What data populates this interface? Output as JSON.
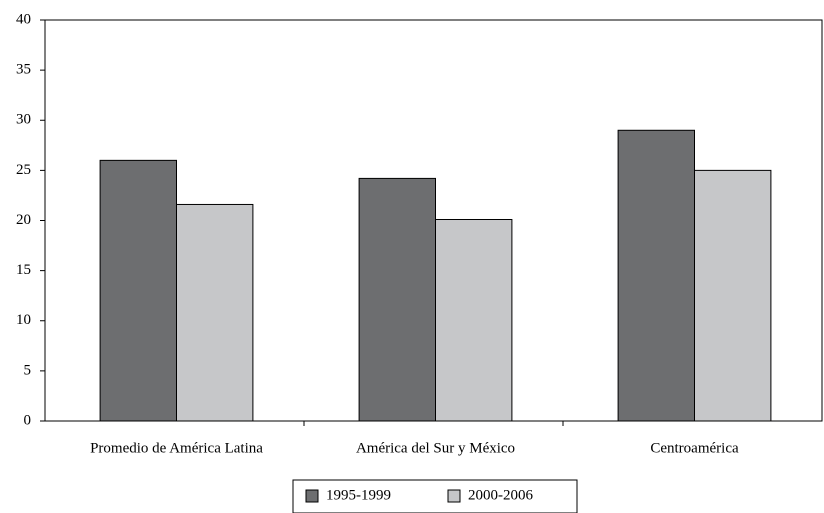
{
  "chart_data": {
    "type": "bar",
    "categories": [
      "Promedio de América Latina",
      "América del Sur y México",
      "Centroamérica"
    ],
    "series": [
      {
        "name": "1995-1999",
        "color": "#6d6e70",
        "values": [
          26,
          24.2,
          29
        ]
      },
      {
        "name": "2000-2006",
        "color": "#c6c7c9",
        "values": [
          21.6,
          20.1,
          25
        ]
      }
    ],
    "ylim": [
      0,
      40
    ],
    "yticks": [
      0,
      5,
      10,
      15,
      20,
      25,
      30,
      35,
      40
    ],
    "grid": false,
    "legend": "bottom"
  }
}
